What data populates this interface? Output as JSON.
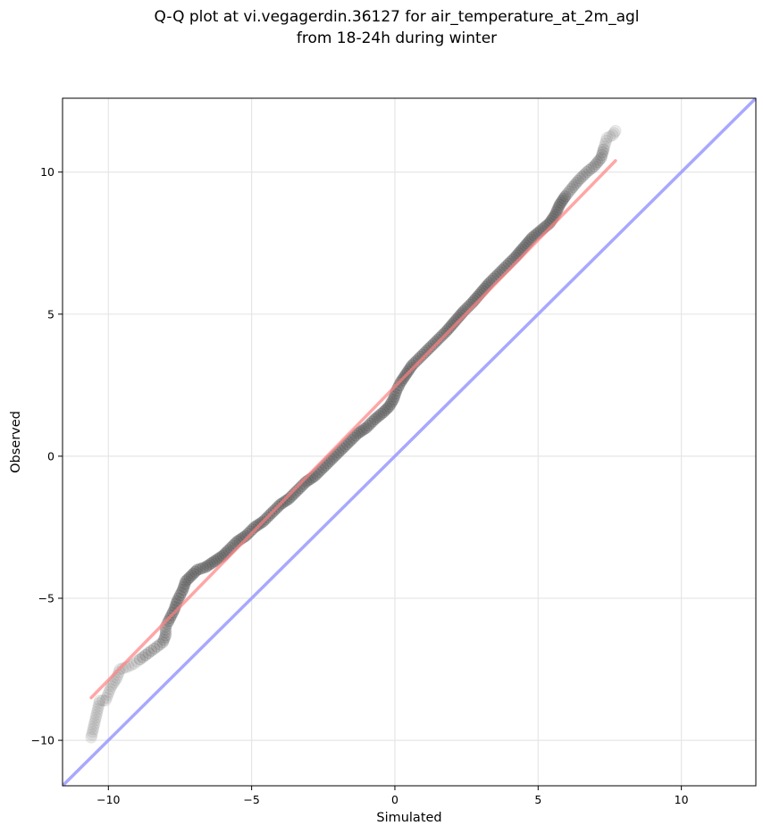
{
  "chart_data": {
    "type": "scatter",
    "title": "Q-Q plot at vi.vegagerdin.36127 for air_temperature_at_2m_agl",
    "subtitle": "from 18-24h during winter",
    "xlabel": "Simulated",
    "ylabel": "Observed",
    "xlim": [
      -11.6,
      12.6
    ],
    "ylim": [
      -11.6,
      12.6
    ],
    "x_ticks": [
      -10,
      -5,
      0,
      5,
      10
    ],
    "y_ticks": [
      -10,
      -5,
      0,
      5,
      10
    ],
    "x_tick_labels": [
      "−10",
      "−5",
      "0",
      "5",
      "10"
    ],
    "y_tick_labels": [
      "−10",
      "−5",
      "0",
      "5",
      "10"
    ],
    "grid": true,
    "series": [
      {
        "kind": "quantile_points",
        "color": "#555555",
        "points": [
          [
            -10.6,
            -9.9
          ],
          [
            -10.3,
            -8.6
          ],
          [
            -10.1,
            -8.6
          ],
          [
            -9.9,
            -8.1
          ],
          [
            -9.7,
            -7.8
          ],
          [
            -9.6,
            -7.5
          ],
          [
            -9.3,
            -7.4
          ],
          [
            -9.1,
            -7.3
          ],
          [
            -8.9,
            -7.15
          ],
          [
            -8.7,
            -7.0
          ],
          [
            -8.5,
            -6.85
          ],
          [
            -8.3,
            -6.7
          ],
          [
            -8.1,
            -6.55
          ],
          [
            -8.0,
            -6.3
          ],
          [
            -8.0,
            -6.0
          ],
          [
            -7.9,
            -5.8
          ],
          [
            -7.8,
            -5.6
          ],
          [
            -7.7,
            -5.4
          ],
          [
            -7.6,
            -5.1
          ],
          [
            -7.5,
            -4.9
          ],
          [
            -7.4,
            -4.7
          ],
          [
            -7.3,
            -4.4
          ],
          [
            -7.1,
            -4.2
          ],
          [
            -6.9,
            -4.0
          ],
          [
            -6.6,
            -3.9
          ],
          [
            -6.3,
            -3.7
          ],
          [
            -6.0,
            -3.5
          ],
          [
            -5.8,
            -3.3
          ],
          [
            -5.5,
            -3.0
          ],
          [
            -5.2,
            -2.8
          ],
          [
            -4.9,
            -2.5
          ],
          [
            -4.6,
            -2.3
          ],
          [
            -4.3,
            -2.0
          ],
          [
            -4.0,
            -1.7
          ],
          [
            -3.7,
            -1.5
          ],
          [
            -3.4,
            -1.2
          ],
          [
            -3.1,
            -0.9
          ],
          [
            -2.8,
            -0.7
          ],
          [
            -2.5,
            -0.4
          ],
          [
            -2.2,
            -0.1
          ],
          [
            -1.9,
            0.2
          ],
          [
            -1.6,
            0.5
          ],
          [
            -1.3,
            0.8
          ],
          [
            -1.0,
            1.0
          ],
          [
            -0.7,
            1.3
          ],
          [
            -0.4,
            1.55
          ],
          [
            -0.2,
            1.75
          ],
          [
            -0.05,
            2.0
          ],
          [
            0.05,
            2.3
          ],
          [
            0.2,
            2.6
          ],
          [
            0.4,
            2.9
          ],
          [
            0.6,
            3.2
          ],
          [
            0.9,
            3.5
          ],
          [
            1.2,
            3.8
          ],
          [
            1.5,
            4.1
          ],
          [
            1.8,
            4.4
          ],
          [
            2.1,
            4.75
          ],
          [
            2.4,
            5.1
          ],
          [
            2.7,
            5.4
          ],
          [
            3.0,
            5.75
          ],
          [
            3.3,
            6.1
          ],
          [
            3.6,
            6.4
          ],
          [
            3.9,
            6.7
          ],
          [
            4.2,
            7.0
          ],
          [
            4.5,
            7.35
          ],
          [
            4.8,
            7.7
          ],
          [
            5.1,
            7.95
          ],
          [
            5.4,
            8.2
          ],
          [
            5.6,
            8.5
          ],
          [
            5.75,
            8.85
          ],
          [
            5.95,
            9.15
          ],
          [
            6.15,
            9.4
          ],
          [
            6.4,
            9.7
          ],
          [
            6.7,
            10.0
          ],
          [
            6.95,
            10.2
          ],
          [
            7.2,
            10.5
          ],
          [
            7.4,
            11.2
          ],
          [
            7.6,
            11.3
          ],
          [
            7.7,
            11.45
          ]
        ]
      },
      {
        "kind": "fit_line",
        "color": "#ff8080",
        "x": [
          -10.6,
          7.7
        ],
        "y": [
          -8.5,
          10.4
        ]
      },
      {
        "kind": "identity_line",
        "color": "#9999ff",
        "x": [
          -11.6,
          12.6
        ],
        "y": [
          -11.6,
          12.6
        ]
      }
    ]
  }
}
